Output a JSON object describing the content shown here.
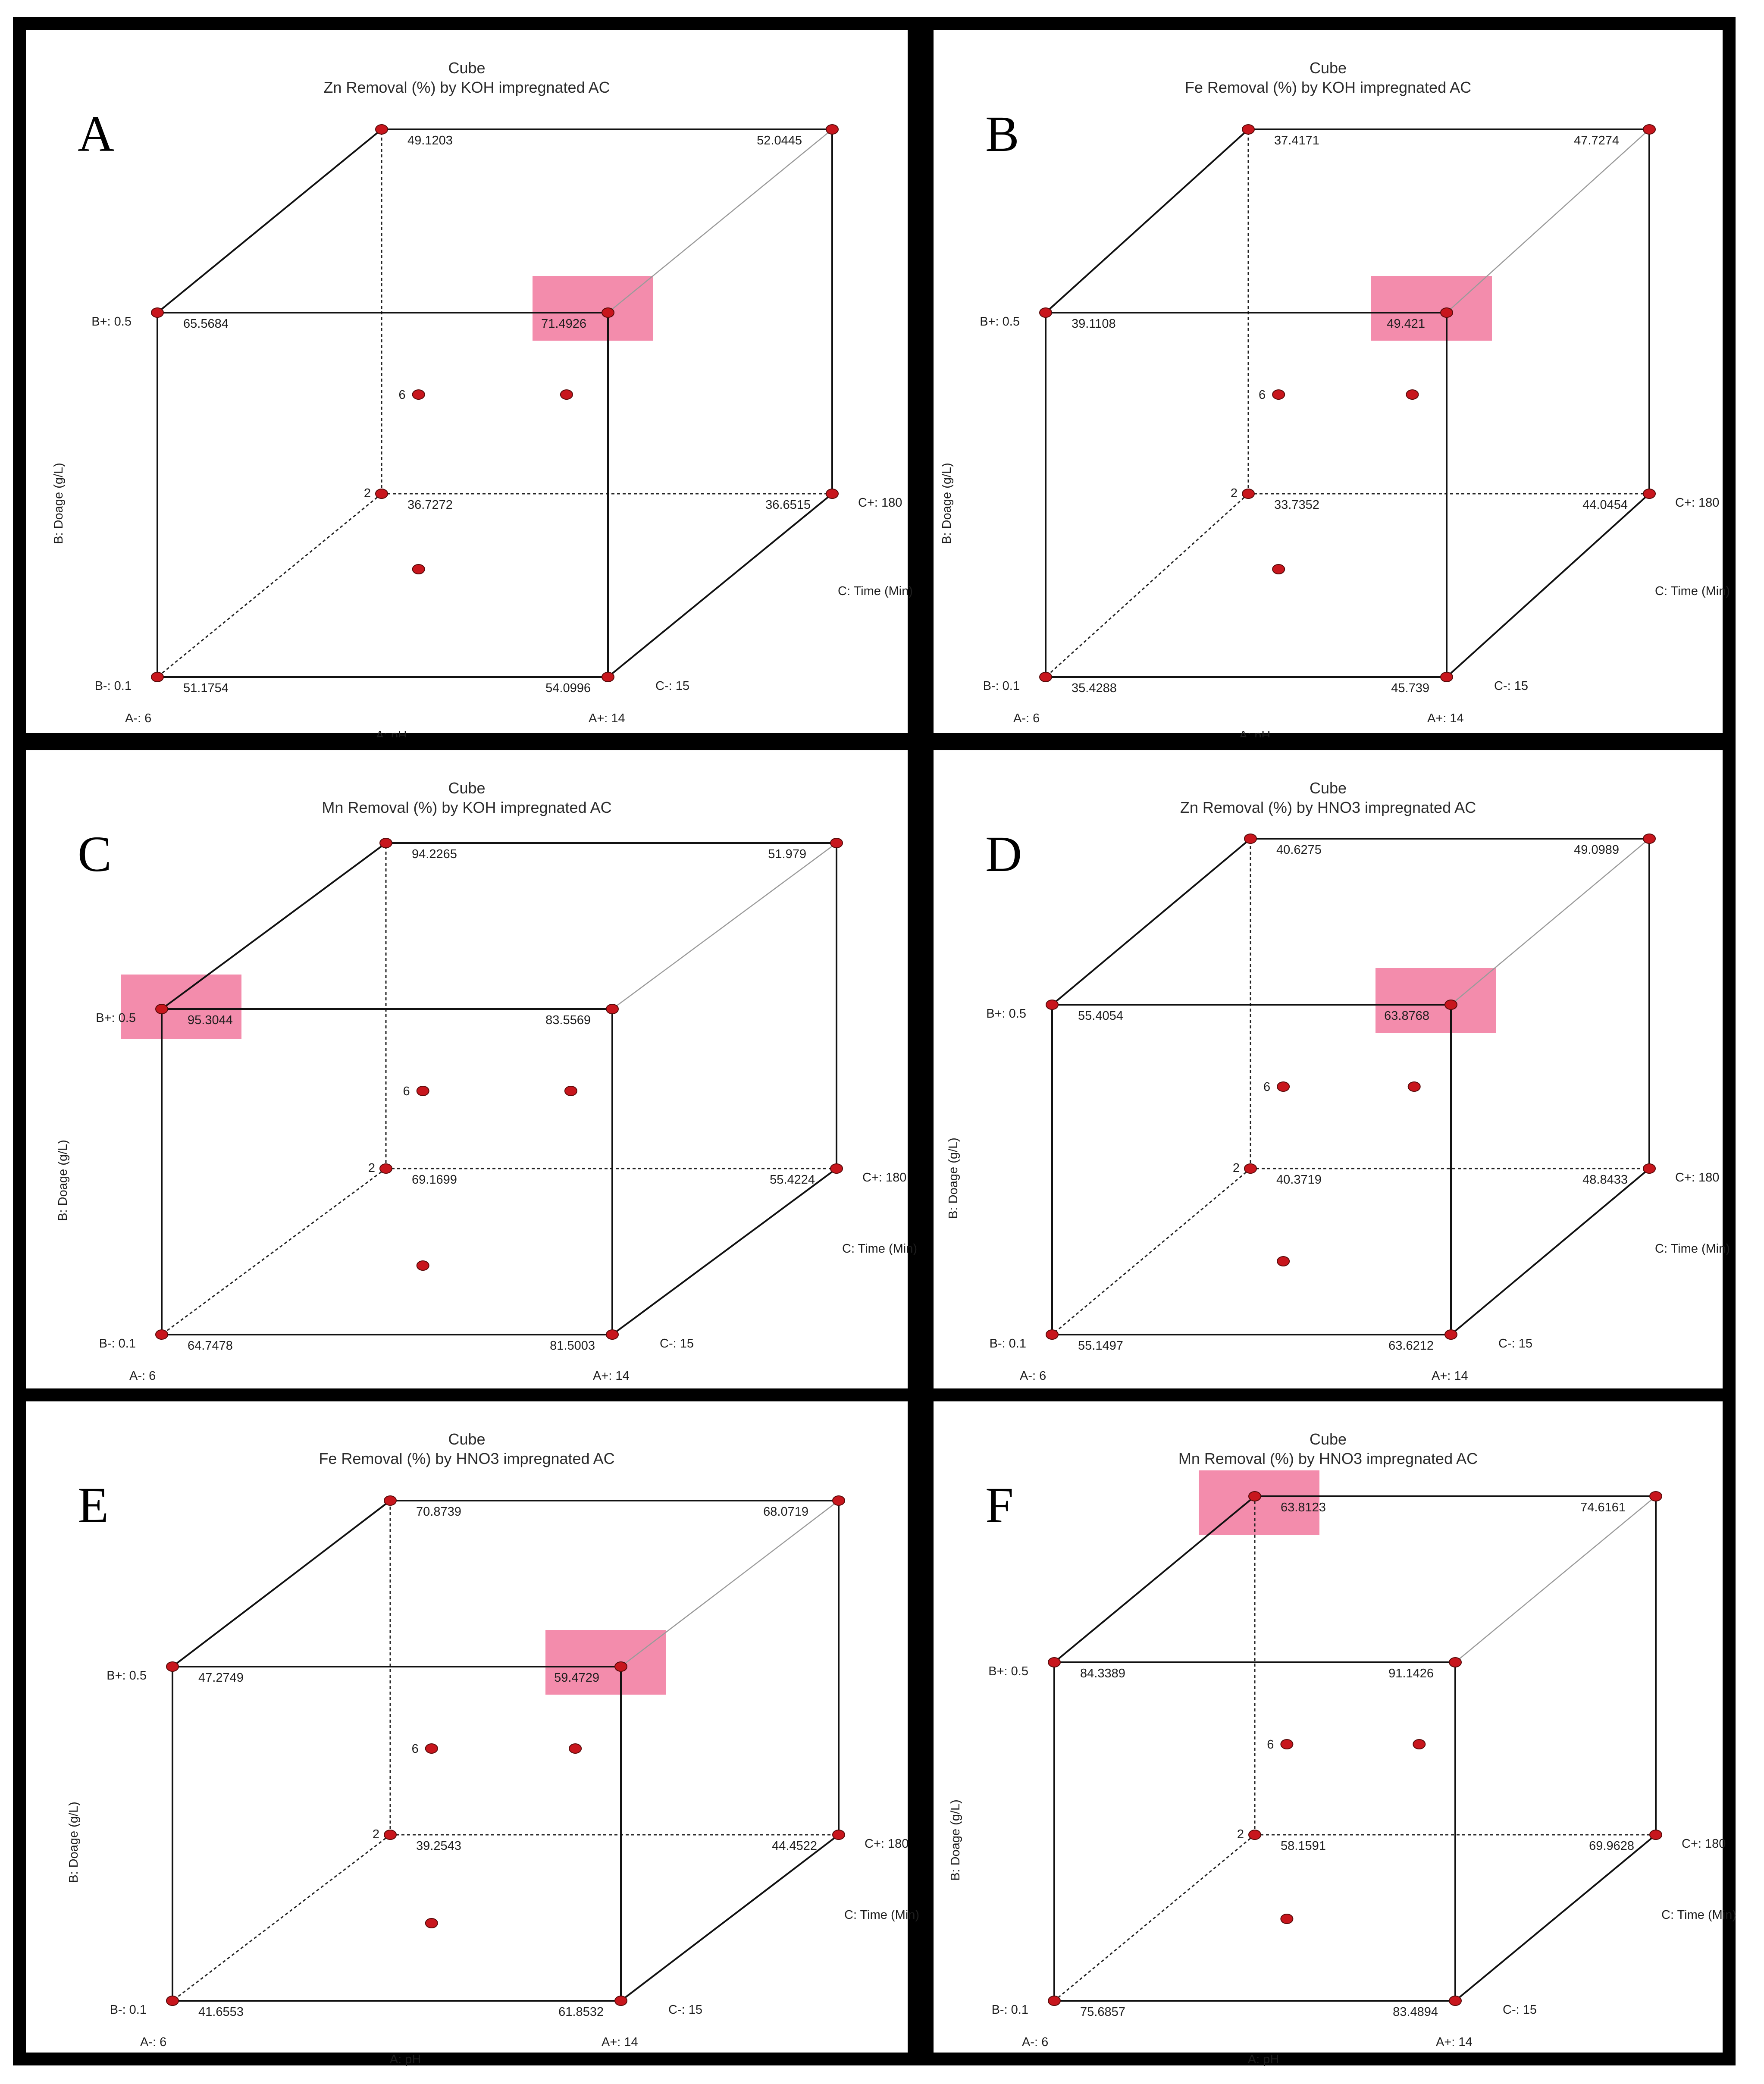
{
  "figure": {
    "panels": [
      {
        "letter": "A",
        "title1": "Cube",
        "title2": "Zn Removal (%) by KOH impregnated AC",
        "pts": {
          "b0c0a0": "51.1754",
          "b0c0a1": "54.0996",
          "b1c0a0": "65.5684",
          "b1c0a1": "71.4926",
          "b0c1a0": "36.7272",
          "b0c1a1": "36.6515",
          "b1c1a0": "49.1203",
          "b1c1a1": "52.0445"
        },
        "highlight": "b1c0a1"
      },
      {
        "letter": "B",
        "title1": "Cube",
        "title2": "Fe Removal (%) by KOH impregnated AC",
        "pts": {
          "b0c0a0": "35.4288",
          "b0c0a1": "45.739",
          "b1c0a0": "39.1108",
          "b1c0a1": "49.421",
          "b0c1a0": "33.7352",
          "b0c1a1": "44.0454",
          "b1c1a0": "37.4171",
          "b1c1a1": "47.7274"
        },
        "highlight": "b1c0a1"
      },
      {
        "letter": "C",
        "title1": "Cube",
        "title2": "Mn Removal (%) by KOH impregnated AC",
        "pts": {
          "b0c0a0": "64.7478",
          "b0c0a1": "81.5003",
          "b1c0a0": "95.3044",
          "b1c0a1": "83.5569",
          "b0c1a0": "69.1699",
          "b0c1a1": "55.4224",
          "b1c1a0": "94.2265",
          "b1c1a1": "51.979"
        },
        "highlight": "b1c0a0"
      },
      {
        "letter": "D",
        "title1": "Cube",
        "title2": "Zn Removal (%) by HNO3 impregnated AC",
        "pts": {
          "b0c0a0": "55.1497",
          "b0c0a1": "63.6212",
          "b1c0a0": "55.4054",
          "b1c0a1": "63.8768",
          "b0c1a0": "40.3719",
          "b0c1a1": "48.8433",
          "b1c1a0": "40.6275",
          "b1c1a1": "49.0989"
        },
        "highlight": "b1c0a1"
      },
      {
        "letter": "E",
        "title1": "Cube",
        "title2": "Fe Removal (%) by HNO3 impregnated AC",
        "pts": {
          "b0c0a0": "41.6553",
          "b0c0a1": "61.8532",
          "b1c0a0": "47.2749",
          "b1c0a1": "59.4729",
          "b0c1a0": "39.2543",
          "b0c1a1": "44.4522",
          "b1c1a0": "70.8739",
          "b1c1a1": "68.0719"
        },
        "highlight": "b1c0a1"
      },
      {
        "letter": "F",
        "title1": "Cube",
        "title2": "Mn Removal (%) by HNO3 impregnated AC",
        "pts": {
          "b0c0a0": "75.6857",
          "b0c0a1": "83.4894",
          "b1c0a0": "84.3389",
          "b1c0a1": "91.1426",
          "b0c1a0": "58.1591",
          "b0c1a1": "69.9628",
          "b1c1a0": "63.8123",
          "b1c1a1": "74.6161"
        },
        "highlight": "b1c1a0"
      }
    ],
    "axis_text": {
      "a_minus": "A-: 6",
      "a_plus": "A+: 14",
      "a_label": "A: pH",
      "b_minus": "B-: 0.1",
      "b_plus": "B+: 0.5",
      "b_label": "B: Doage (g/L)",
      "c_minus": "C-: 15",
      "c_plus": "C+: 180",
      "c_label": "C: Time (Min)",
      "center_count": "6",
      "corner_count": "2"
    },
    "colors": {
      "point": "#c8161d",
      "highlight": "#f06b95",
      "frame": "#000000"
    }
  },
  "chart_data": [
    {
      "type": "scatter",
      "subtype": "3d-cube",
      "title": "Cube",
      "subtitle": "Zn Removal (%) by KOH impregnated AC",
      "factors": {
        "A": {
          "name": "pH",
          "levels": [
            6,
            14
          ]
        },
        "B": {
          "name": "Doage (g/L)",
          "levels": [
            0.1,
            0.5
          ]
        },
        "C": {
          "name": "Time (Min)",
          "levels": [
            15,
            180
          ]
        }
      },
      "corners": [
        {
          "A": 6,
          "B": 0.1,
          "C": 15,
          "y": 51.1754
        },
        {
          "A": 14,
          "B": 0.1,
          "C": 15,
          "y": 54.0996
        },
        {
          "A": 6,
          "B": 0.5,
          "C": 15,
          "y": 65.5684
        },
        {
          "A": 14,
          "B": 0.5,
          "C": 15,
          "y": 71.4926
        },
        {
          "A": 6,
          "B": 0.1,
          "C": 180,
          "y": 36.7272
        },
        {
          "A": 14,
          "B": 0.1,
          "C": 180,
          "y": 36.6515
        },
        {
          "A": 6,
          "B": 0.5,
          "C": 180,
          "y": 49.1203
        },
        {
          "A": 14,
          "B": 0.5,
          "C": 180,
          "y": 52.0445
        }
      ],
      "highlighted": {
        "A": 14,
        "B": 0.5,
        "C": 15
      }
    },
    {
      "type": "scatter",
      "subtype": "3d-cube",
      "title": "Cube",
      "subtitle": "Fe Removal (%) by KOH impregnated AC",
      "factors": {
        "A": {
          "name": "pH",
          "levels": [
            6,
            14
          ]
        },
        "B": {
          "name": "Doage (g/L)",
          "levels": [
            0.1,
            0.5
          ]
        },
        "C": {
          "name": "Time (Min)",
          "levels": [
            15,
            180
          ]
        }
      },
      "corners": [
        {
          "A": 6,
          "B": 0.1,
          "C": 15,
          "y": 35.4288
        },
        {
          "A": 14,
          "B": 0.1,
          "C": 15,
          "y": 45.739
        },
        {
          "A": 6,
          "B": 0.5,
          "C": 15,
          "y": 39.1108
        },
        {
          "A": 14,
          "B": 0.5,
          "C": 15,
          "y": 49.421
        },
        {
          "A": 6,
          "B": 0.1,
          "C": 180,
          "y": 33.7352
        },
        {
          "A": 14,
          "B": 0.1,
          "C": 180,
          "y": 44.0454
        },
        {
          "A": 6,
          "B": 0.5,
          "C": 180,
          "y": 37.4171
        },
        {
          "A": 14,
          "B": 0.5,
          "C": 180,
          "y": 47.7274
        }
      ],
      "highlighted": {
        "A": 14,
        "B": 0.5,
        "C": 15
      }
    },
    {
      "type": "scatter",
      "subtype": "3d-cube",
      "title": "Cube",
      "subtitle": "Mn Removal (%) by KOH impregnated AC",
      "factors": {
        "A": {
          "name": "pH",
          "levels": [
            6,
            14
          ]
        },
        "B": {
          "name": "Doage (g/L)",
          "levels": [
            0.1,
            0.5
          ]
        },
        "C": {
          "name": "Time (Min)",
          "levels": [
            15,
            180
          ]
        }
      },
      "corners": [
        {
          "A": 6,
          "B": 0.1,
          "C": 15,
          "y": 64.7478
        },
        {
          "A": 14,
          "B": 0.1,
          "C": 15,
          "y": 81.5003
        },
        {
          "A": 6,
          "B": 0.5,
          "C": 15,
          "y": 95.3044
        },
        {
          "A": 14,
          "B": 0.5,
          "C": 15,
          "y": 83.5569
        },
        {
          "A": 6,
          "B": 0.1,
          "C": 180,
          "y": 69.1699
        },
        {
          "A": 14,
          "B": 0.1,
          "C": 180,
          "y": 55.4224
        },
        {
          "A": 6,
          "B": 0.5,
          "C": 180,
          "y": 94.2265
        },
        {
          "A": 14,
          "B": 0.5,
          "C": 180,
          "y": 51.979
        }
      ],
      "highlighted": {
        "A": 6,
        "B": 0.5,
        "C": 15
      }
    },
    {
      "type": "scatter",
      "subtype": "3d-cube",
      "title": "Cube",
      "subtitle": "Zn Removal (%) by HNO3 impregnated AC",
      "factors": {
        "A": {
          "name": "pH",
          "levels": [
            6,
            14
          ]
        },
        "B": {
          "name": "Doage (g/L)",
          "levels": [
            0.1,
            0.5
          ]
        },
        "C": {
          "name": "Time (Min)",
          "levels": [
            15,
            180
          ]
        }
      },
      "corners": [
        {
          "A": 6,
          "B": 0.1,
          "C": 15,
          "y": 55.1497
        },
        {
          "A": 14,
          "B": 0.1,
          "C": 15,
          "y": 63.6212
        },
        {
          "A": 6,
          "B": 0.5,
          "C": 15,
          "y": 55.4054
        },
        {
          "A": 14,
          "B": 0.5,
          "C": 15,
          "y": 63.8768
        },
        {
          "A": 6,
          "B": 0.1,
          "C": 180,
          "y": 40.3719
        },
        {
          "A": 14,
          "B": 0.1,
          "C": 180,
          "y": 48.8433
        },
        {
          "A": 6,
          "B": 0.5,
          "C": 180,
          "y": 40.6275
        },
        {
          "A": 14,
          "B": 0.5,
          "C": 180,
          "y": 49.0989
        }
      ],
      "highlighted": {
        "A": 14,
        "B": 0.5,
        "C": 15
      }
    },
    {
      "type": "scatter",
      "subtype": "3d-cube",
      "title": "Cube",
      "subtitle": "Fe Removal (%) by HNO3 impregnated AC",
      "factors": {
        "A": {
          "name": "pH",
          "levels": [
            6,
            14
          ]
        },
        "B": {
          "name": "Doage (g/L)",
          "levels": [
            0.1,
            0.5
          ]
        },
        "C": {
          "name": "Time (Min)",
          "levels": [
            15,
            180
          ]
        }
      },
      "corners": [
        {
          "A": 6,
          "B": 0.1,
          "C": 15,
          "y": 41.6553
        },
        {
          "A": 14,
          "B": 0.1,
          "C": 15,
          "y": 61.8532
        },
        {
          "A": 6,
          "B": 0.5,
          "C": 15,
          "y": 47.2749
        },
        {
          "A": 14,
          "B": 0.5,
          "C": 15,
          "y": 59.4729
        },
        {
          "A": 6,
          "B": 0.1,
          "C": 180,
          "y": 39.2543
        },
        {
          "A": 14,
          "B": 0.1,
          "C": 180,
          "y": 44.4522
        },
        {
          "A": 6,
          "B": 0.5,
          "C": 180,
          "y": 70.8739
        },
        {
          "A": 14,
          "B": 0.5,
          "C": 180,
          "y": 68.0719
        }
      ],
      "highlighted": {
        "A": 14,
        "B": 0.5,
        "C": 15
      }
    },
    {
      "type": "scatter",
      "subtype": "3d-cube",
      "title": "Cube",
      "subtitle": "Mn Removal (%) by HNO3 impregnated AC",
      "factors": {
        "A": {
          "name": "pH",
          "levels": [
            6,
            14
          ]
        },
        "B": {
          "name": "Doage (g/L)",
          "levels": [
            0.1,
            0.5
          ]
        },
        "C": {
          "name": "Time (Min)",
          "levels": [
            15,
            180
          ]
        }
      },
      "corners": [
        {
          "A": 6,
          "B": 0.1,
          "C": 15,
          "y": 75.6857
        },
        {
          "A": 14,
          "B": 0.1,
          "C": 15,
          "y": 83.4894
        },
        {
          "A": 6,
          "B": 0.5,
          "C": 15,
          "y": 84.3389
        },
        {
          "A": 14,
          "B": 0.5,
          "C": 15,
          "y": 91.1426
        },
        {
          "A": 6,
          "B": 0.1,
          "C": 180,
          "y": 58.1591
        },
        {
          "A": 14,
          "B": 0.1,
          "C": 180,
          "y": 69.9628
        },
        {
          "A": 6,
          "B": 0.5,
          "C": 180,
          "y": 63.8123
        },
        {
          "A": 14,
          "B": 0.5,
          "C": 180,
          "y": 74.6161
        }
      ],
      "highlighted": {
        "A": 6,
        "B": 0.5,
        "C": 180
      }
    }
  ]
}
